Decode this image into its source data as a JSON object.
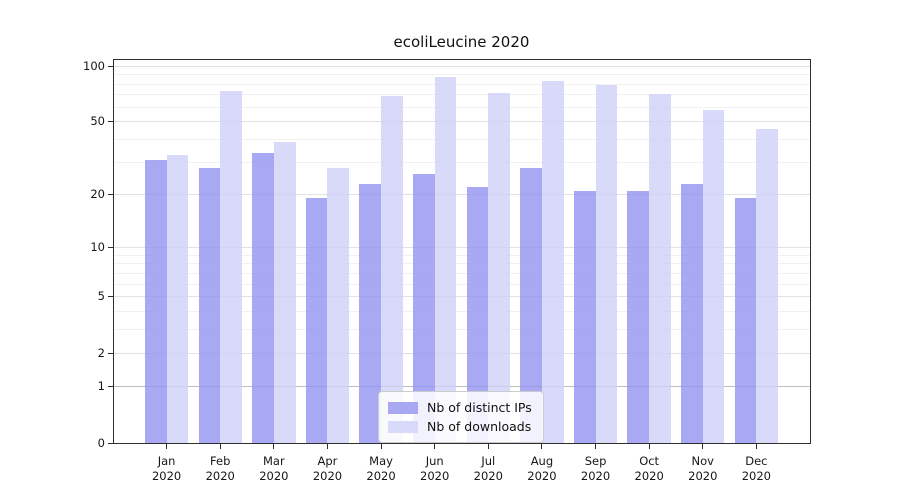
{
  "chart_data": {
    "type": "bar",
    "title": "ecoliLeucine 2020",
    "categories": [
      "Jan",
      "Feb",
      "Mar",
      "Apr",
      "May",
      "Jun",
      "Jul",
      "Aug",
      "Sep",
      "Oct",
      "Nov",
      "Dec"
    ],
    "year_label": "2020",
    "series": [
      {
        "name": "Nb of distinct IPs",
        "color": "rgba(147,147,240,0.8)",
        "legend_color": "#a9a9f3",
        "values": [
          31,
          28,
          34,
          19,
          23,
          26,
          22,
          28,
          21,
          21,
          23,
          19
        ]
      },
      {
        "name": "Nb of downloads",
        "color": "rgba(208,208,248,0.8)",
        "legend_color": "#d9d9f9",
        "values": [
          33,
          74,
          39,
          28,
          69,
          87,
          72,
          83,
          79,
          71,
          58,
          46
        ]
      }
    ],
    "y_axis": {
      "scale": "log1p",
      "ticks": [
        0,
        1,
        2,
        5,
        10,
        20,
        50,
        100
      ],
      "tick_labels": [
        "0",
        "1",
        "2",
        "5",
        "10",
        "20",
        "50",
        "100"
      ],
      "minor_ticks": [
        3,
        4,
        6,
        7,
        8,
        9,
        30,
        40,
        60,
        70,
        80,
        90
      ],
      "ylim": [
        0,
        110
      ]
    },
    "x_axis": {
      "tick_labels_line1": [
        "Jan",
        "Feb",
        "Mar",
        "Apr",
        "May",
        "Jun",
        "Jul",
        "Aug",
        "Sep",
        "Oct",
        "Nov",
        "Dec"
      ],
      "tick_labels_line2": "2020"
    },
    "legend": {
      "position": "lower center"
    },
    "grid": true,
    "colors": {
      "major_grid": "#e2e2e2",
      "minor_grid": "#f1f1f1",
      "baseline_grid": "#bdbdbd",
      "axis": "#2e2e2e"
    }
  }
}
